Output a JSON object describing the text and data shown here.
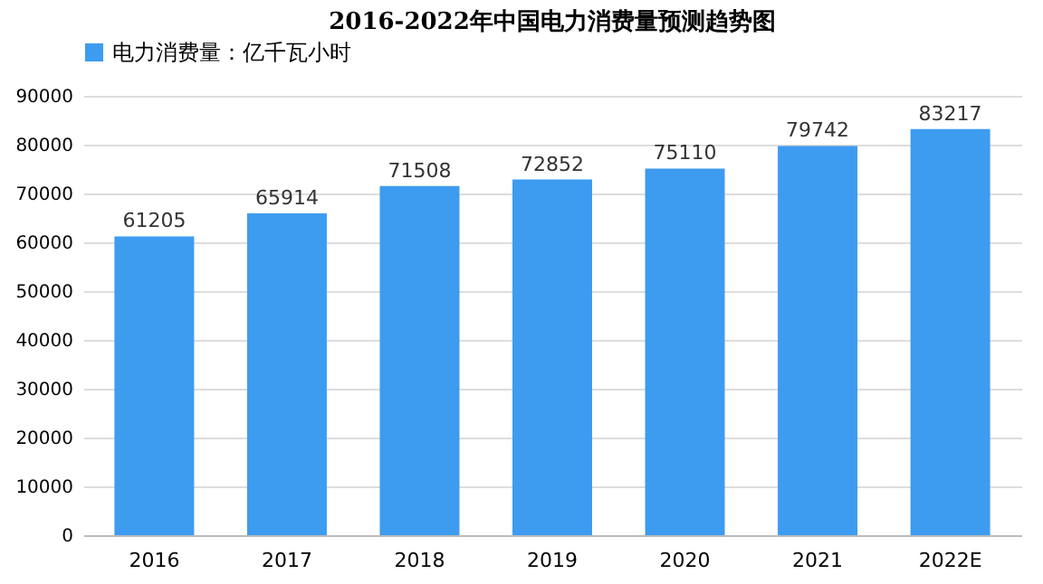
{
  "chart_data": {
    "type": "bar",
    "title": "2016-2022年中国电力消费量预测趋势图",
    "categories": [
      "2016",
      "2017",
      "2018",
      "2019",
      "2020",
      "2021",
      "2022E"
    ],
    "series": [
      {
        "name": "电力消费量：亿千瓦小时",
        "color": "#3d9cf0",
        "values": [
          61205,
          65914,
          71508,
          72852,
          75110,
          79742,
          83217
        ]
      }
    ],
    "ylim": [
      0,
      90000
    ],
    "yticks": [
      0,
      10000,
      20000,
      30000,
      40000,
      50000,
      60000,
      70000,
      80000,
      90000
    ],
    "grid": "y",
    "legend": "top",
    "data_labels": true
  }
}
